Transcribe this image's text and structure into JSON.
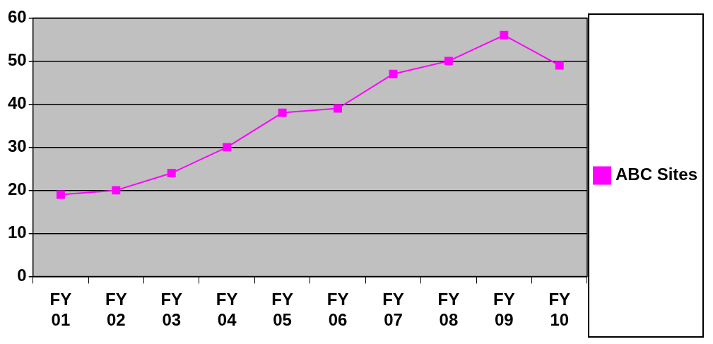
{
  "chart_data": {
    "type": "line",
    "categories": [
      "FY 01",
      "FY 02",
      "FY 03",
      "FY 04",
      "FY 05",
      "FY 06",
      "FY 07",
      "FY 08",
      "FY 09",
      "FY 10"
    ],
    "series": [
      {
        "name": "ABC Sites",
        "color": "#ff00ff",
        "values": [
          19,
          20,
          24,
          30,
          38,
          39,
          47,
          50,
          56,
          49
        ]
      }
    ],
    "ylim": [
      0,
      60
    ],
    "yticks": [
      0,
      10,
      20,
      30,
      40,
      50,
      60
    ],
    "grid": "y",
    "legend": "right",
    "marker": "square",
    "line_style": "solid"
  }
}
